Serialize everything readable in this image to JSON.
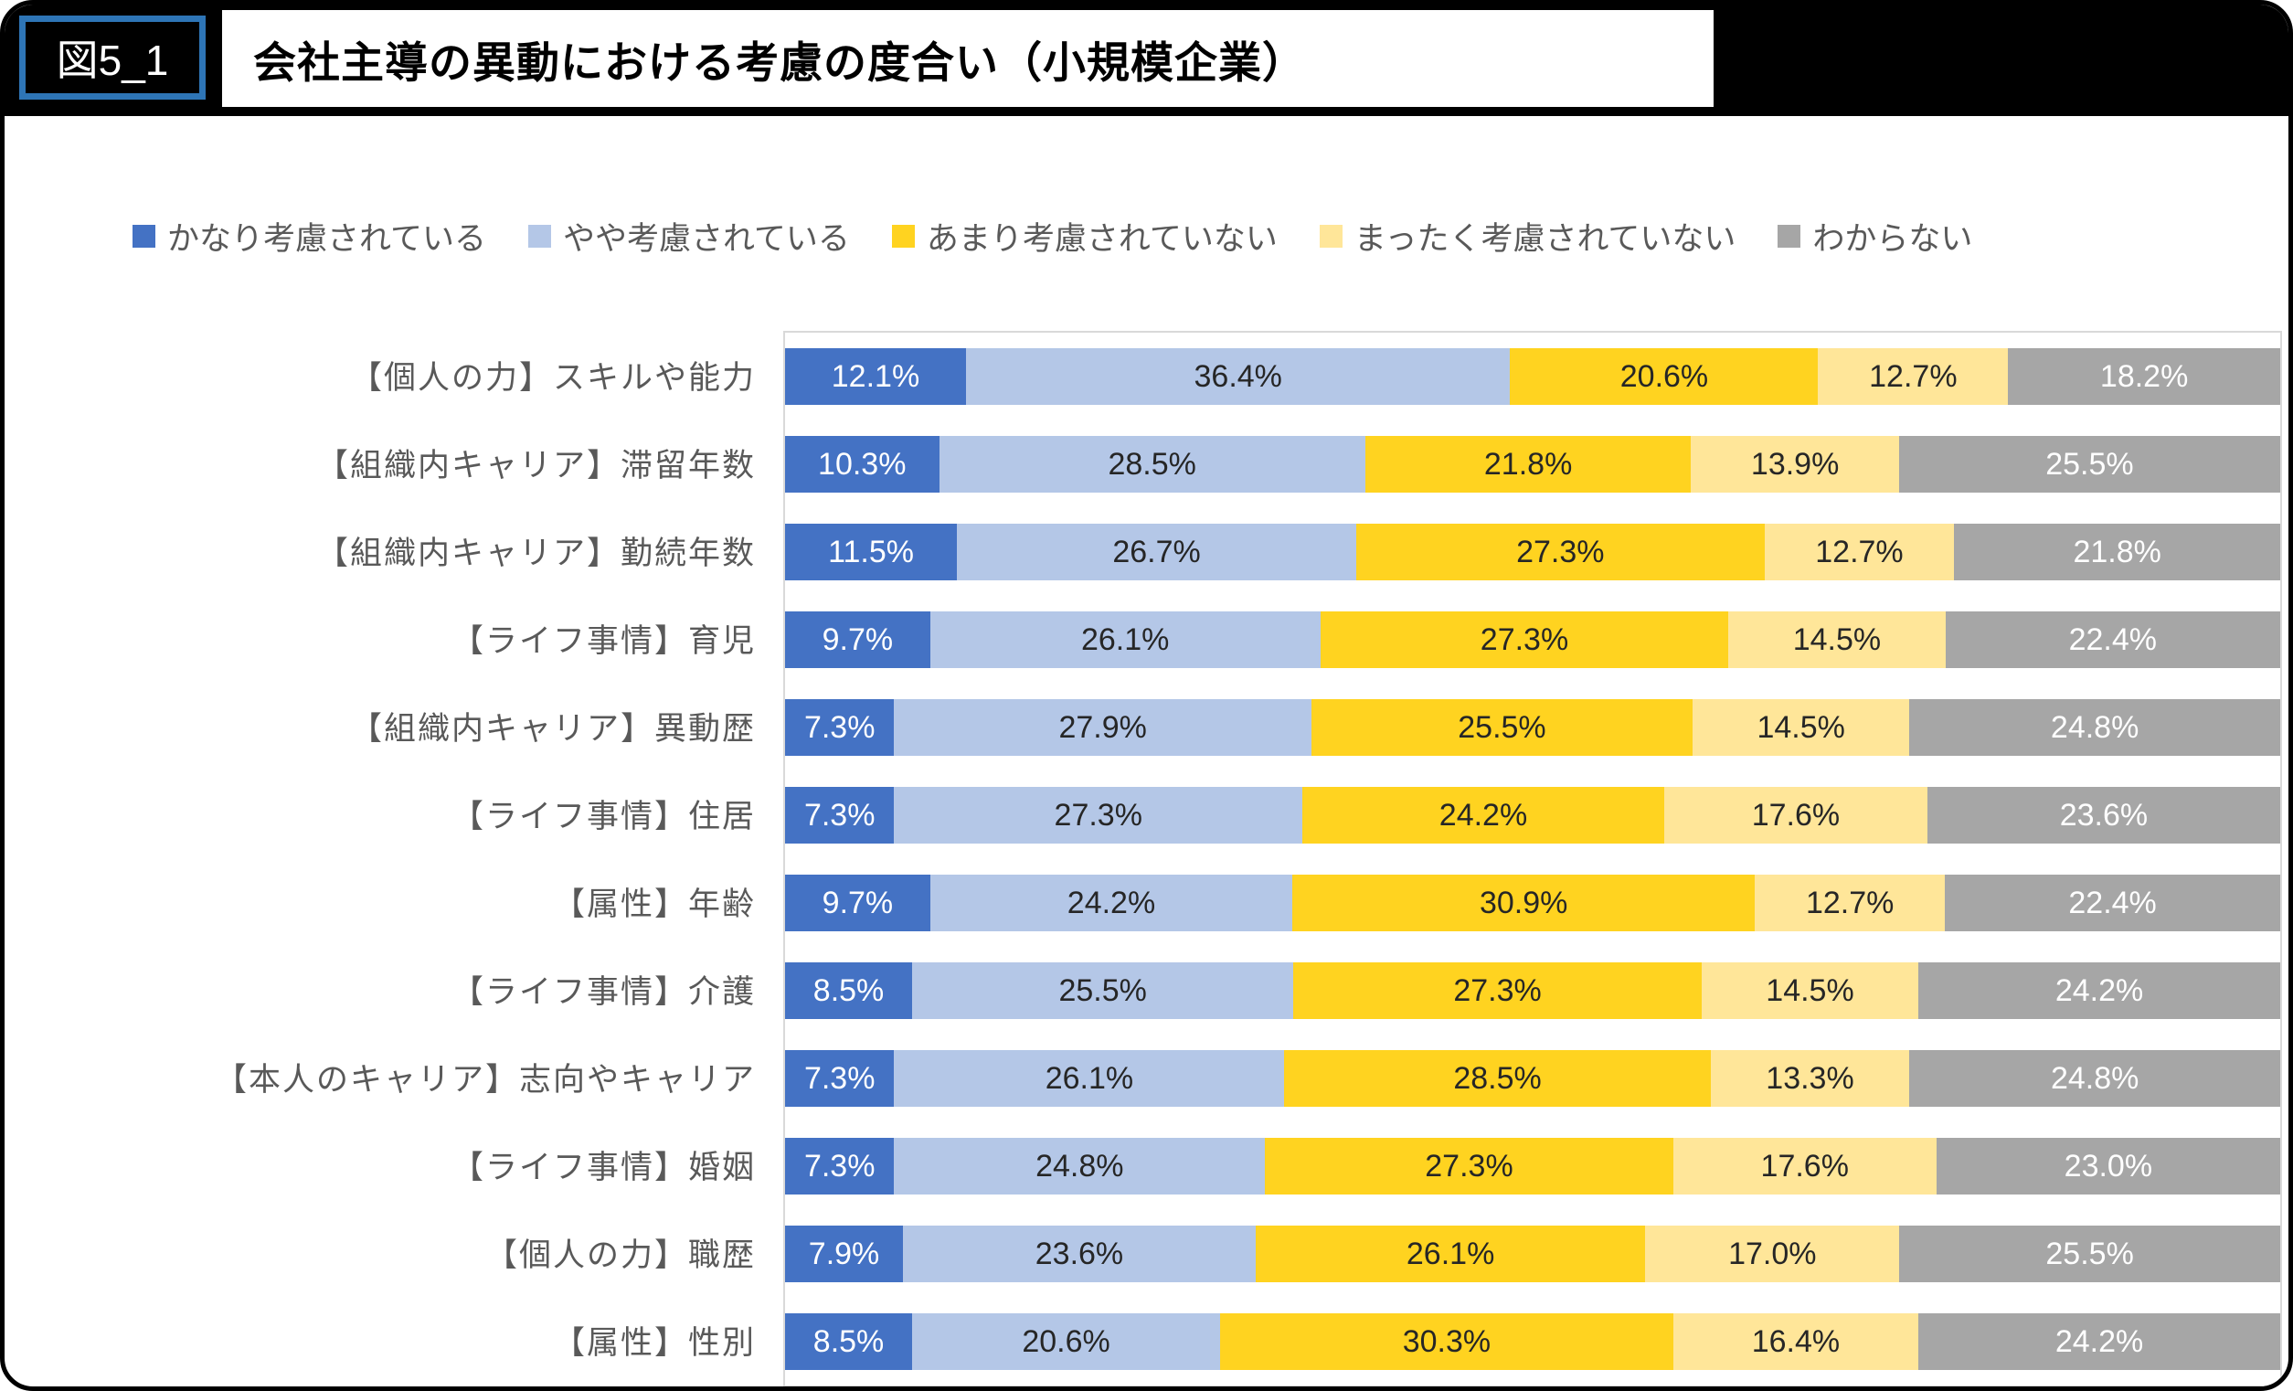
{
  "figure_tag": "図5_1",
  "title": "会社主導の異動における考慮の度合い（小規模企業）",
  "chart_data": {
    "type": "bar",
    "stacked": true,
    "orientation": "horizontal",
    "unit": "%",
    "xlim": [
      0,
      100
    ],
    "legend_position": "top",
    "grid": false,
    "title": "会社主導の異動における考慮の度合い（小規模企業）",
    "categories": [
      "【個人の力】スキルや能力",
      "【組織内キャリア】滞留年数",
      "【組織内キャリア】勤続年数",
      "【ライフ事情】育児",
      "【組織内キャリア】異動歴",
      "【ライフ事情】住居",
      "【属性】年齢",
      "【ライフ事情】介護",
      "【本人のキャリア】志向やキャリア",
      "【ライフ事情】婚姻",
      "【個人の力】職歴",
      "【属性】性別"
    ],
    "series": [
      {
        "name": "かなり考慮されている",
        "color": "#4472C4",
        "text_color": "#FFFFFF",
        "values": [
          12.1,
          10.3,
          11.5,
          9.7,
          7.3,
          7.3,
          9.7,
          8.5,
          7.3,
          7.3,
          7.9,
          8.5
        ]
      },
      {
        "name": "やや考慮されている",
        "color": "#B4C7E7",
        "text_color": "#262626",
        "values": [
          36.4,
          28.5,
          26.7,
          26.1,
          27.9,
          27.3,
          24.2,
          25.5,
          26.1,
          24.8,
          23.6,
          20.6
        ]
      },
      {
        "name": "あまり考慮されていない",
        "color": "#FFD320",
        "text_color": "#262626",
        "values": [
          20.6,
          21.8,
          27.3,
          27.3,
          25.5,
          24.2,
          30.9,
          27.3,
          28.5,
          27.3,
          26.1,
          30.3
        ]
      },
      {
        "name": "まったく考慮されていない",
        "color": "#FFE699",
        "text_color": "#262626",
        "values": [
          12.7,
          13.9,
          12.7,
          14.5,
          14.5,
          17.6,
          12.7,
          14.5,
          13.3,
          17.6,
          17.0,
          16.4
        ]
      },
      {
        "name": "わからない",
        "color": "#A6A6A6",
        "text_color": "#FFFFFF",
        "values": [
          18.2,
          25.5,
          21.8,
          22.4,
          24.8,
          23.6,
          22.4,
          24.2,
          24.8,
          23.0,
          25.5,
          24.2
        ]
      }
    ]
  }
}
